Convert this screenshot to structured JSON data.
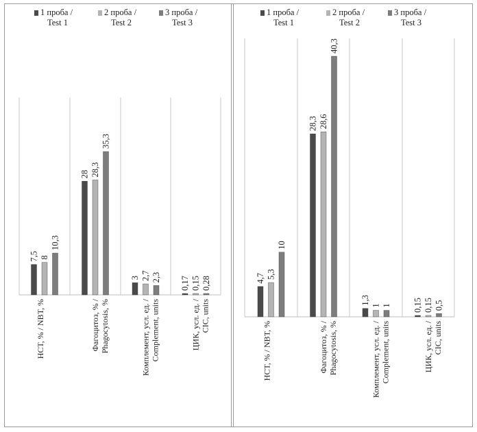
{
  "chart_data": [
    {
      "type": "bar",
      "categories": [
        "НСТ, % / NBT, %",
        "Фагоцитоз, % / Phagocytosis, %",
        "Комплемент, усл. ед. / Complement, units",
        "ЦИК, усл. ед. / CIC, units"
      ],
      "category_lines": [
        [
          "НСТ, % / NBT, %"
        ],
        [
          "Фагоцитоз, % /",
          "Phagocytosis, %"
        ],
        [
          "Комплемент, усл. ед. /",
          "Complement, units"
        ],
        [
          "ЦИК, усл. ед. /",
          "CIC, units"
        ]
      ],
      "series": [
        {
          "name": "1 проба / Test 1",
          "name_lines": [
            "1 проба /",
            "Test 1"
          ],
          "color": "#4a4a4a",
          "values": [
            7.5,
            28,
            3,
            0.17
          ],
          "labels": [
            "7,5",
            "28",
            "3",
            "0,17"
          ]
        },
        {
          "name": "2 проба / Test 2",
          "name_lines": [
            "2 проба /",
            "Test 2"
          ],
          "color": "#b4b4b4",
          "values": [
            8,
            28.3,
            2.7,
            0.15
          ],
          "labels": [
            "8",
            "28,3",
            "2,7",
            "0,15"
          ]
        },
        {
          "name": "3 проба / Test 3",
          "name_lines": [
            "3 проба /",
            "Test 3"
          ],
          "color": "#7d7d7d",
          "values": [
            10.3,
            35.3,
            2.3,
            0.28
          ],
          "labels": [
            "10,3",
            "35,3",
            "2,3",
            "0,28"
          ]
        }
      ],
      "ylim": [
        0,
        42
      ],
      "legend": "top",
      "grid": false
    },
    {
      "type": "bar",
      "categories": [
        "НСТ, % / NBT, %",
        "Фагоцитоз, % / Phagocytosis, %",
        "Комплемент, усл. ед. / Complement, units",
        "ЦИК, усл. ед. / CIC, units"
      ],
      "category_lines": [
        [
          "НСТ, % / NBT, %"
        ],
        [
          "Фагоцитоз, % /",
          "Phagocytosis, %"
        ],
        [
          "Комплемент, усл. ед. /",
          "Complement, units"
        ],
        [
          "ЦИК, усл. ед. /",
          "CIC, units"
        ]
      ],
      "series": [
        {
          "name": "1 проба / Test 1",
          "name_lines": [
            "1 проба /",
            "Test 1"
          ],
          "color": "#4a4a4a",
          "values": [
            4.7,
            28.3,
            1.3,
            0.15
          ],
          "labels": [
            "4,7",
            "28,3",
            "1,3",
            "0,15"
          ]
        },
        {
          "name": "2 проба / Test 2",
          "name_lines": [
            "2 проба /",
            "Test 2"
          ],
          "color": "#b4b4b4",
          "values": [
            5.3,
            28.6,
            1,
            0.15
          ],
          "labels": [
            "5,3",
            "28,6",
            "1",
            "0,15"
          ]
        },
        {
          "name": "3 проба / Test 3",
          "name_lines": [
            "3 проба /",
            "Test 3"
          ],
          "color": "#7d7d7d",
          "values": [
            10,
            40.3,
            1,
            0.5
          ],
          "labels": [
            "10",
            "40,3",
            "1",
            "0,5"
          ]
        }
      ],
      "ylim": [
        0,
        42
      ],
      "legend": "top",
      "grid": false
    }
  ]
}
